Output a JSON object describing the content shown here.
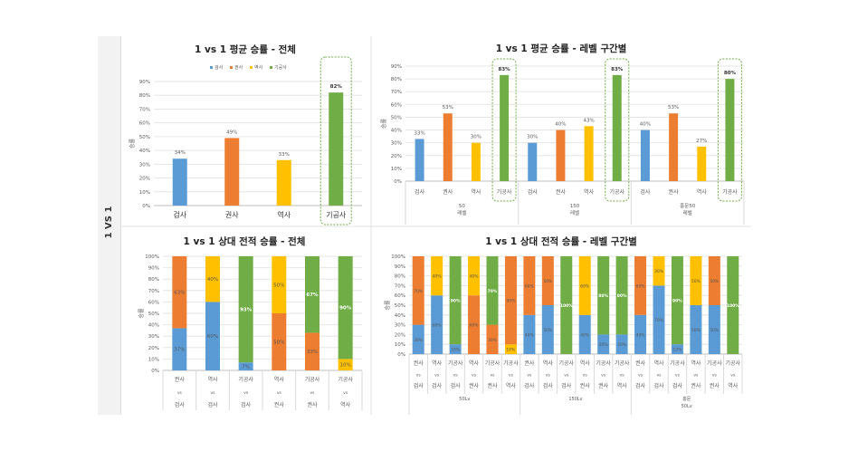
{
  "side_label": "1 VS 1",
  "colors": {
    "검사": "#5b9bd5",
    "권사": "#ed7d31",
    "역사": "#ffc000",
    "기공사": "#70ad47",
    "highlight": "#70ad47"
  },
  "chart_data": [
    {
      "type": "bar",
      "title": "1 vs 1 평균 승률 - 전체",
      "ylabel": "승률",
      "legend": [
        "검사",
        "권사",
        "역사",
        "기공사"
      ],
      "legend_position": "top",
      "categories": [
        "검사",
        "권사",
        "역사",
        "기공사"
      ],
      "values": [
        34,
        49,
        33,
        82
      ],
      "labels": [
        "34%",
        "49%",
        "33%",
        "82%"
      ],
      "ylim": [
        0,
        90
      ],
      "yticks": [
        "0%",
        "10%",
        "20%",
        "30%",
        "40%",
        "50%",
        "60%",
        "70%",
        "80%",
        "90%"
      ],
      "grid": true,
      "highlighted": [
        "기공사"
      ]
    },
    {
      "type": "bar",
      "title": "1 vs 1 평균 승률 - 레벨 구간별",
      "ylabel": "승률",
      "groups": [
        {
          "label": [
            "50",
            "레벨"
          ],
          "categories": [
            "검사",
            "권사",
            "역사",
            "기공사"
          ],
          "values": [
            33,
            53,
            30,
            83
          ]
        },
        {
          "label": [
            "150",
            "레벨"
          ],
          "categories": [
            "검사",
            "권사",
            "역사",
            "기공사"
          ],
          "values": [
            30,
            40,
            43,
            83
          ]
        },
        {
          "label": [
            "홍문50",
            "레벨"
          ],
          "categories": [
            "검사",
            "권사",
            "역사",
            "기공사"
          ],
          "values": [
            40,
            53,
            27,
            80
          ]
        }
      ],
      "ylim": [
        0,
        90
      ],
      "yticks": [
        "0%",
        "10%",
        "20%",
        "30%",
        "40%",
        "50%",
        "60%",
        "70%",
        "80%",
        "90%"
      ],
      "grid": true,
      "highlighted": [
        "기공사"
      ]
    },
    {
      "type": "bar",
      "stacked": "100%",
      "title": "1 vs 1 상대 전적 승률 - 전체",
      "ylabel": "승률",
      "bars": [
        {
          "label": [
            "권사",
            "vs",
            "검사"
          ],
          "segments": [
            {
              "cls": "검사",
              "value": 37
            },
            {
              "cls": "권사",
              "value": 63
            }
          ]
        },
        {
          "label": [
            "역사",
            "vs",
            "검사"
          ],
          "segments": [
            {
              "cls": "검사",
              "value": 60
            },
            {
              "cls": "역사",
              "value": 40
            }
          ]
        },
        {
          "label": [
            "기공사",
            "vs",
            "검사"
          ],
          "segments": [
            {
              "cls": "검사",
              "value": 7
            },
            {
              "cls": "기공사",
              "value": 93
            }
          ]
        },
        {
          "label": [
            "역사",
            "vs",
            "권사"
          ],
          "segments": [
            {
              "cls": "권사",
              "value": 50
            },
            {
              "cls": "역사",
              "value": 50
            }
          ]
        },
        {
          "label": [
            "기공사",
            "vs",
            "권사"
          ],
          "segments": [
            {
              "cls": "권사",
              "value": 33
            },
            {
              "cls": "기공사",
              "value": 67
            }
          ]
        },
        {
          "label": [
            "기공사",
            "vs",
            "역사"
          ],
          "segments": [
            {
              "cls": "역사",
              "value": 10
            },
            {
              "cls": "기공사",
              "value": 90
            }
          ]
        }
      ],
      "ylim": [
        0,
        100
      ],
      "yticks": [
        "0%",
        "10%",
        "20%",
        "30%",
        "40%",
        "50%",
        "60%",
        "70%",
        "80%",
        "90%",
        "100%"
      ]
    },
    {
      "type": "bar",
      "stacked": "100%",
      "title": "1 vs 1 상대 전적 승률 - 레벨 구간별",
      "ylabel": "승률",
      "groups": [
        {
          "label": [
            "50Lv"
          ],
          "bars": [
            {
              "label": [
                "권사",
                "vs",
                "검사"
              ],
              "segments": [
                {
                  "cls": "검사",
                  "value": 30
                },
                {
                  "cls": "권사",
                  "value": 70
                }
              ]
            },
            {
              "label": [
                "역사",
                "vs",
                "검사"
              ],
              "segments": [
                {
                  "cls": "검사",
                  "value": 60
                },
                {
                  "cls": "역사",
                  "value": 40
                }
              ]
            },
            {
              "label": [
                "기공사",
                "vs",
                "검사"
              ],
              "segments": [
                {
                  "cls": "검사",
                  "value": 10
                },
                {
                  "cls": "기공사",
                  "value": 90
                }
              ]
            },
            {
              "label": [
                "역사",
                "vs",
                "권사"
              ],
              "segments": [
                {
                  "cls": "권사",
                  "value": 60
                },
                {
                  "cls": "역사",
                  "value": 40
                }
              ]
            },
            {
              "label": [
                "기공사",
                "vs",
                "권사"
              ],
              "segments": [
                {
                  "cls": "권사",
                  "value": 30
                },
                {
                  "cls": "기공사",
                  "value": 70
                }
              ]
            },
            {
              "label": [
                "기공사",
                "vs",
                "역사"
              ],
              "segments": [
                {
                  "cls": "역사",
                  "value": 10
                },
                {
                  "cls": "권사",
                  "value": 90
                }
              ]
            }
          ]
        },
        {
          "label": [
            "150Lv"
          ],
          "bars": [
            {
              "label": [
                "권사",
                "vs",
                "검사"
              ],
              "segments": [
                {
                  "cls": "검사",
                  "value": 40
                },
                {
                  "cls": "권사",
                  "value": 60
                }
              ]
            },
            {
              "label": [
                "역사",
                "vs",
                "검사"
              ],
              "segments": [
                {
                  "cls": "검사",
                  "value": 50
                },
                {
                  "cls": "권사",
                  "value": 50
                }
              ]
            },
            {
              "label": [
                "기공사",
                "vs",
                "검사"
              ],
              "segments": [
                {
                  "cls": "검사",
                  "value": 0
                },
                {
                  "cls": "기공사",
                  "value": 100
                }
              ]
            },
            {
              "label": [
                "역사",
                "vs",
                "권사"
              ],
              "segments": [
                {
                  "cls": "검사",
                  "value": 40
                },
                {
                  "cls": "역사",
                  "value": 60
                }
              ]
            },
            {
              "label": [
                "기공사",
                "vs",
                "권사"
              ],
              "segments": [
                {
                  "cls": "검사",
                  "value": 20
                },
                {
                  "cls": "기공사",
                  "value": 80
                }
              ]
            },
            {
              "label": [
                "기공사",
                "vs",
                "역사"
              ],
              "segments": [
                {
                  "cls": "검사",
                  "value": 20
                },
                {
                  "cls": "기공사",
                  "value": 80
                }
              ]
            }
          ]
        },
        {
          "label": [
            "홍문",
            "50Lv"
          ],
          "bars": [
            {
              "label": [
                "권사",
                "vs",
                "검사"
              ],
              "segments": [
                {
                  "cls": "검사",
                  "value": 40
                },
                {
                  "cls": "권사",
                  "value": 60
                }
              ]
            },
            {
              "label": [
                "역사",
                "vs",
                "검사"
              ],
              "segments": [
                {
                  "cls": "검사",
                  "value": 70
                },
                {
                  "cls": "역사",
                  "value": 30
                }
              ]
            },
            {
              "label": [
                "기공사",
                "vs",
                "검사"
              ],
              "segments": [
                {
                  "cls": "검사",
                  "value": 10
                },
                {
                  "cls": "기공사",
                  "value": 90
                }
              ]
            },
            {
              "label": [
                "역사",
                "vs",
                "권사"
              ],
              "segments": [
                {
                  "cls": "검사",
                  "value": 50
                },
                {
                  "cls": "역사",
                  "value": 50
                }
              ]
            },
            {
              "label": [
                "기공사",
                "vs",
                "권사"
              ],
              "segments": [
                {
                  "cls": "검사",
                  "value": 50
                },
                {
                  "cls": "권사",
                  "value": 50
                }
              ]
            },
            {
              "label": [
                "기공사",
                "vs",
                "역사"
              ],
              "segments": [
                {
                  "cls": "검사",
                  "value": 0
                },
                {
                  "cls": "기공사",
                  "value": 100
                }
              ]
            }
          ]
        }
      ],
      "ylim": [
        0,
        100
      ],
      "yticks": [
        "0%",
        "10%",
        "20%",
        "30%",
        "40%",
        "50%",
        "60%",
        "70%",
        "80%",
        "90%",
        "100%"
      ]
    }
  ]
}
